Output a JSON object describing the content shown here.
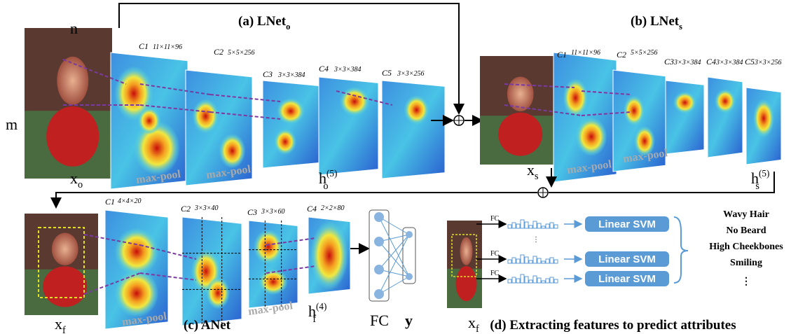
{
  "panels": {
    "a": {
      "title": {
        "text": "(a) LNet",
        "sub": "o"
      },
      "n": "n",
      "m": "m",
      "input": {
        "text": "x",
        "sub": "o"
      },
      "layers": [
        {
          "name": "C1",
          "size": "11×11×96"
        },
        {
          "name": "C2",
          "size": "5×5×256"
        },
        {
          "name": "C3",
          "size": "3×3×384"
        },
        {
          "name": "C4",
          "size": "3×3×384"
        },
        {
          "name": "C5",
          "size": "3×3×256"
        }
      ],
      "pools": [
        "max-pool",
        "max-pool"
      ],
      "output": {
        "text": "h",
        "sup": "(5)",
        "sub": "o"
      }
    },
    "b": {
      "title": {
        "text": "(b) LNet",
        "sub": "s"
      },
      "input": {
        "text": "x",
        "sub": "s"
      },
      "layers": [
        {
          "name": "C1",
          "size": "11×11×96"
        },
        {
          "name": "C2",
          "size": "5×5×256"
        },
        {
          "name": "C3",
          "size": "3×3×384"
        },
        {
          "name": "C4",
          "size": "3×3×384"
        },
        {
          "name": "C5",
          "size": "3×3×256"
        }
      ],
      "pools": [
        "max-pool",
        "max-pool"
      ],
      "output": {
        "text": "h",
        "sup": "(5)",
        "sub": "s"
      }
    },
    "c": {
      "title": "(c) ANet",
      "input": {
        "text": "x",
        "sub": "f"
      },
      "layers": [
        {
          "name": "C1",
          "size": "4×4×20"
        },
        {
          "name": "C2",
          "size": "3×3×40"
        },
        {
          "name": "C3",
          "size": "3×3×60"
        },
        {
          "name": "C4",
          "size": "2×2×80"
        }
      ],
      "pools": [
        "max-pool",
        "max-pool"
      ],
      "output": {
        "text": "h",
        "sup": "(4)",
        "sub": "f"
      },
      "fc": "FC",
      "y": "y"
    },
    "d": {
      "title": "(d) Extracting features to predict attributes",
      "input": {
        "text": "x",
        "sub": "f"
      },
      "rows": [
        {
          "fc": "FC",
          "svm": "Linear SVM"
        },
        {
          "fc": "FC",
          "svm": "Linear SVM"
        },
        {
          "fc": "FC",
          "svm": "Linear SVM"
        }
      ],
      "gap": "⋮",
      "attributes": [
        "Wavy Hair",
        "No Beard",
        "High Cheekbones",
        "Smiling",
        "⋮"
      ]
    }
  }
}
